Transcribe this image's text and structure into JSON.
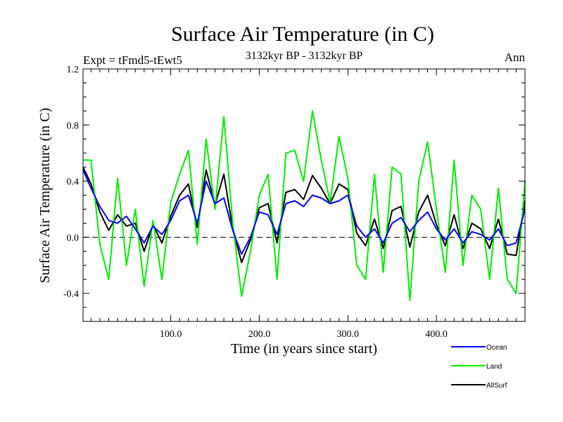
{
  "chart_data": {
    "type": "line",
    "title": "Surface Air Temperature (in C)",
    "subtitle_left": "Expt = tFmd5-tEwt5",
    "subtitle_center": "3132kyr BP - 3132kyr BP",
    "subtitle_right": "Ann",
    "xlabel": "Time (in years since start)",
    "ylabel": "Surface Air Temperature (in C)",
    "xlim": [
      1,
      500
    ],
    "ylim": [
      -0.6,
      1.2
    ],
    "x_ticks": [
      {
        "value": 100,
        "label": "100.0"
      },
      {
        "value": 200,
        "label": "200.0"
      },
      {
        "value": 300,
        "label": "300.0"
      },
      {
        "value": 400,
        "label": "400.0"
      }
    ],
    "y_ticks": [
      {
        "value": -0.4,
        "label": "-0.4"
      },
      {
        "value": 0.0,
        "label": "0.0"
      },
      {
        "value": 0.4,
        "label": "0.4"
      },
      {
        "value": 0.8,
        "label": "0.8"
      },
      {
        "value": 1.2,
        "label": "1.2"
      }
    ],
    "zero_line": true,
    "legend_position": "bottom-right",
    "series": [
      {
        "name": "Ocean",
        "color": "#0000ff",
        "x": [
          1,
          10,
          20,
          30,
          40,
          50,
          60,
          70,
          80,
          90,
          100,
          110,
          120,
          130,
          140,
          150,
          160,
          170,
          180,
          190,
          200,
          210,
          220,
          230,
          240,
          250,
          260,
          270,
          280,
          290,
          300,
          310,
          320,
          330,
          340,
          350,
          360,
          370,
          380,
          390,
          400,
          410,
          420,
          430,
          440,
          450,
          460,
          470,
          480,
          490,
          500
        ],
        "values": [
          0.48,
          0.35,
          0.22,
          0.12,
          0.1,
          0.15,
          0.06,
          -0.04,
          0.08,
          0.02,
          0.12,
          0.26,
          0.3,
          0.1,
          0.4,
          0.24,
          0.28,
          0.05,
          -0.12,
          0.0,
          0.18,
          0.16,
          0.02,
          0.24,
          0.26,
          0.22,
          0.3,
          0.28,
          0.24,
          0.26,
          0.3,
          0.08,
          0.0,
          0.06,
          -0.04,
          0.1,
          0.14,
          0.04,
          0.12,
          0.18,
          0.06,
          -0.02,
          0.06,
          -0.04,
          0.04,
          0.02,
          -0.02,
          0.06,
          -0.06,
          -0.04,
          0.2
        ]
      },
      {
        "name": "Land",
        "color": "#00ee00",
        "x": [
          1,
          10,
          20,
          30,
          40,
          50,
          60,
          70,
          80,
          90,
          100,
          110,
          120,
          130,
          140,
          150,
          160,
          170,
          180,
          190,
          200,
          210,
          220,
          230,
          240,
          250,
          260,
          270,
          280,
          290,
          300,
          310,
          320,
          330,
          340,
          350,
          360,
          370,
          380,
          390,
          400,
          410,
          420,
          430,
          440,
          450,
          460,
          470,
          480,
          490,
          500
        ],
        "values": [
          0.55,
          0.55,
          -0.05,
          -0.3,
          0.42,
          -0.2,
          0.2,
          -0.35,
          0.12,
          -0.3,
          0.25,
          0.45,
          0.62,
          -0.05,
          0.7,
          0.2,
          0.86,
          0.1,
          -0.42,
          -0.1,
          0.3,
          0.45,
          -0.3,
          0.6,
          0.62,
          0.4,
          0.9,
          0.55,
          0.25,
          0.72,
          0.42,
          -0.2,
          -0.3,
          0.45,
          -0.25,
          0.5,
          0.45,
          -0.45,
          0.4,
          0.68,
          0.2,
          -0.25,
          0.55,
          -0.2,
          0.3,
          0.2,
          -0.3,
          0.35,
          -0.3,
          -0.4,
          0.4
        ]
      },
      {
        "name": "AllSurf",
        "color": "#000000",
        "x": [
          1,
          10,
          20,
          30,
          40,
          50,
          60,
          70,
          80,
          90,
          100,
          110,
          120,
          130,
          140,
          150,
          160,
          170,
          180,
          190,
          200,
          210,
          220,
          230,
          240,
          250,
          260,
          270,
          280,
          290,
          300,
          310,
          320,
          330,
          340,
          350,
          360,
          370,
          380,
          390,
          400,
          410,
          420,
          430,
          440,
          450,
          460,
          470,
          480,
          490,
          500
        ],
        "values": [
          0.5,
          0.38,
          0.18,
          0.05,
          0.16,
          0.08,
          0.1,
          -0.1,
          0.09,
          -0.04,
          0.15,
          0.3,
          0.38,
          0.07,
          0.48,
          0.23,
          0.45,
          0.06,
          -0.18,
          -0.02,
          0.21,
          0.24,
          -0.04,
          0.32,
          0.34,
          0.27,
          0.44,
          0.35,
          0.24,
          0.38,
          0.34,
          0.03,
          -0.06,
          0.13,
          -0.08,
          0.19,
          0.22,
          -0.07,
          0.18,
          0.3,
          0.09,
          -0.06,
          0.16,
          -0.08,
          0.1,
          0.06,
          -0.08,
          0.13,
          -0.12,
          -0.13,
          0.26
        ]
      }
    ]
  }
}
